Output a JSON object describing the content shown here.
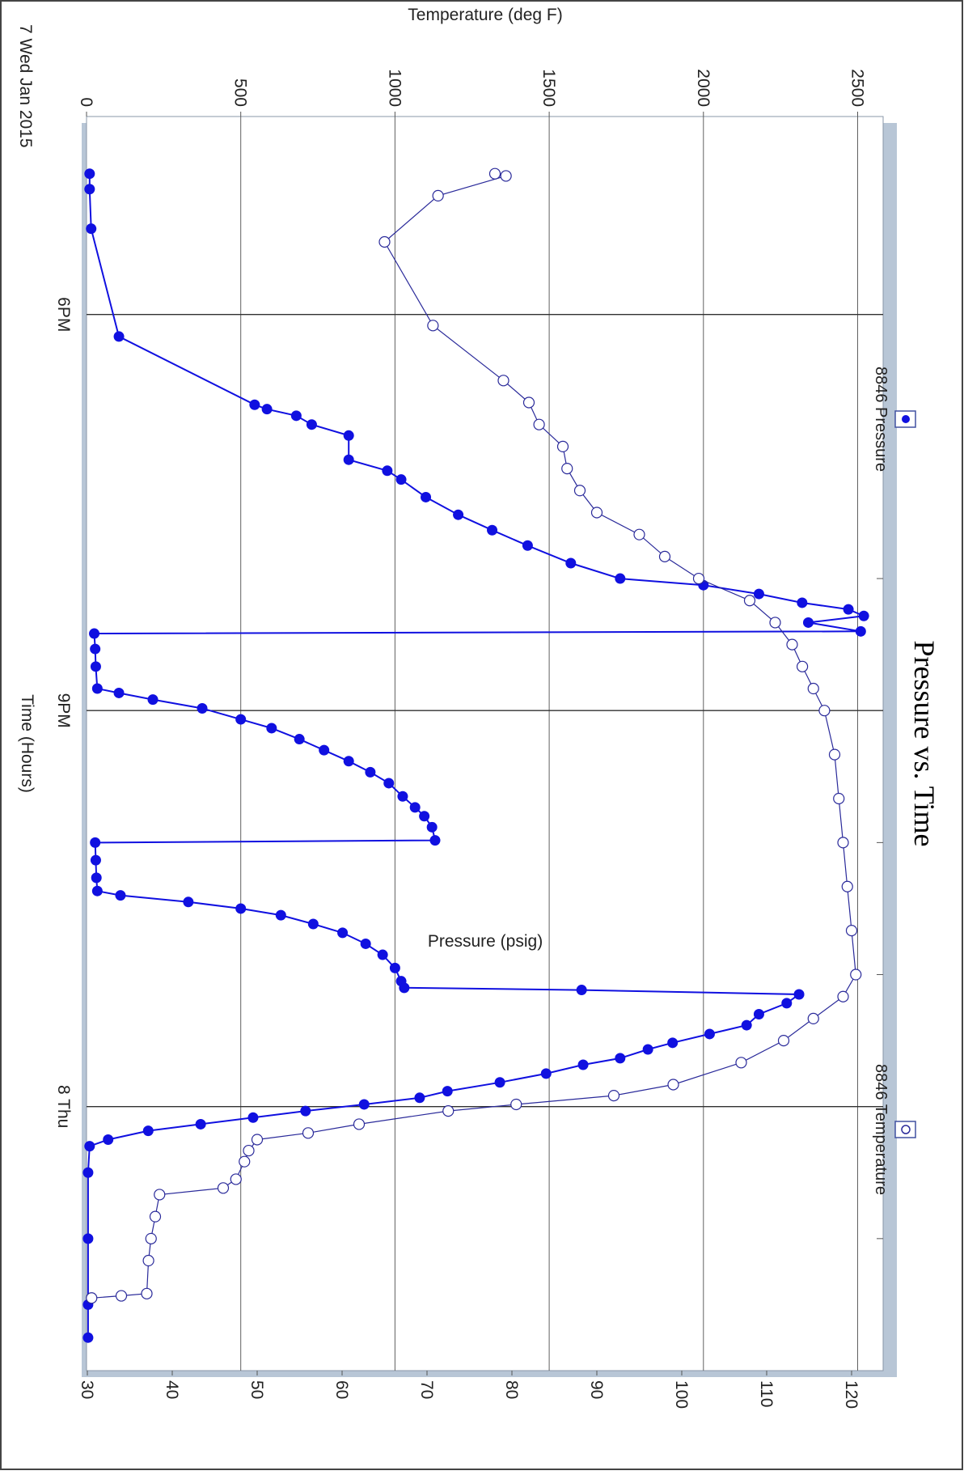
{
  "chart_data": {
    "type": "line",
    "title": "Pressure vs. Time",
    "xlabel": "Time (Hours)",
    "y1label": "Pressure (psig)",
    "y2label": "Temperature (deg F)",
    "date_label": "7 Wed Jan 2015",
    "xlim": [
      "2015-01-07T16:30",
      "2015-01-08T02:00"
    ],
    "x_major_ticks": [
      {
        "t": "2015-01-07T18:00",
        "label": "6PM"
      },
      {
        "t": "2015-01-07T21:00",
        "label": "9PM"
      },
      {
        "t": "2015-01-08T00:00",
        "label": "8 Thu"
      }
    ],
    "x_minor_ticks": [
      "2015-01-07T19:00",
      "2015-01-07T20:00",
      "2015-01-07T22:00",
      "2015-01-07T23:00",
      "2015-01-08T01:00"
    ],
    "y1lim": [
      0,
      2650
    ],
    "y1_ticks": [
      0,
      500,
      1000,
      1500,
      2000,
      2500
    ],
    "y2lim": [
      26,
      124
    ],
    "y2_ticks": [
      30,
      40,
      50,
      60,
      70,
      80,
      90,
      100,
      110,
      120
    ],
    "grid": true,
    "legend_position": "right",
    "series": [
      {
        "name": "8846 Pressure",
        "axis": "pressure",
        "marker": "filled-circle",
        "color": "#1010e0",
        "points": [
          [
            "2015-01-07T16:56",
            10
          ],
          [
            "2015-01-07T17:03",
            10
          ],
          [
            "2015-01-07T17:21",
            15
          ],
          [
            "2015-01-07T18:10",
            105
          ],
          [
            "2015-01-07T18:41",
            545
          ],
          [
            "2015-01-07T18:43",
            585
          ],
          [
            "2015-01-07T18:46",
            680
          ],
          [
            "2015-01-07T18:50",
            730
          ],
          [
            "2015-01-07T18:55",
            850
          ],
          [
            "2015-01-07T19:06",
            850
          ],
          [
            "2015-01-07T19:11",
            975
          ],
          [
            "2015-01-07T19:15",
            1020
          ],
          [
            "2015-01-07T19:23",
            1100
          ],
          [
            "2015-01-07T19:31",
            1205
          ],
          [
            "2015-01-07T19:38",
            1315
          ],
          [
            "2015-01-07T19:45",
            1430
          ],
          [
            "2015-01-07T19:53",
            1570
          ],
          [
            "2015-01-07T20:00",
            1730
          ],
          [
            "2015-01-07T20:03",
            2000
          ],
          [
            "2015-01-07T20:07",
            2180
          ],
          [
            "2015-01-07T20:11",
            2320
          ],
          [
            "2015-01-07T20:14",
            2470
          ],
          [
            "2015-01-07T20:17",
            2520
          ],
          [
            "2015-01-07T20:20",
            2340
          ],
          [
            "2015-01-07T20:24",
            2510
          ],
          [
            "2015-01-07T20:25",
            25
          ],
          [
            "2015-01-07T20:32",
            28
          ],
          [
            "2015-01-07T20:40",
            30
          ],
          [
            "2015-01-07T20:50",
            35
          ],
          [
            "2015-01-07T20:52",
            105
          ],
          [
            "2015-01-07T20:55",
            215
          ],
          [
            "2015-01-07T20:59",
            375
          ],
          [
            "2015-01-07T21:04",
            500
          ],
          [
            "2015-01-07T21:08",
            600
          ],
          [
            "2015-01-07T21:13",
            690
          ],
          [
            "2015-01-07T21:18",
            770
          ],
          [
            "2015-01-07T21:23",
            850
          ],
          [
            "2015-01-07T21:28",
            920
          ],
          [
            "2015-01-07T21:33",
            980
          ],
          [
            "2015-01-07T21:39",
            1025
          ],
          [
            "2015-01-07T21:44",
            1065
          ],
          [
            "2015-01-07T21:48",
            1095
          ],
          [
            "2015-01-07T21:53",
            1120
          ],
          [
            "2015-01-07T21:59",
            1130
          ],
          [
            "2015-01-07T22:00",
            28
          ],
          [
            "2015-01-07T22:08",
            30
          ],
          [
            "2015-01-07T22:16",
            32
          ],
          [
            "2015-01-07T22:22",
            35
          ],
          [
            "2015-01-07T22:24",
            110
          ],
          [
            "2015-01-07T22:27",
            330
          ],
          [
            "2015-01-07T22:30",
            500
          ],
          [
            "2015-01-07T22:33",
            630
          ],
          [
            "2015-01-07T22:37",
            735
          ],
          [
            "2015-01-07T22:41",
            830
          ],
          [
            "2015-01-07T22:46",
            905
          ],
          [
            "2015-01-07T22:51",
            960
          ],
          [
            "2015-01-07T22:57",
            1000
          ],
          [
            "2015-01-07T23:03",
            1020
          ],
          [
            "2015-01-07T23:06",
            1030
          ],
          [
            "2015-01-07T23:07",
            1605
          ],
          [
            "2015-01-07T23:09",
            2310
          ],
          [
            "2015-01-07T23:13",
            2270
          ],
          [
            "2015-01-07T23:18",
            2180
          ],
          [
            "2015-01-07T23:23",
            2140
          ],
          [
            "2015-01-07T23:27",
            2020
          ],
          [
            "2015-01-07T23:31",
            1900
          ],
          [
            "2015-01-07T23:34",
            1820
          ],
          [
            "2015-01-07T23:38",
            1730
          ],
          [
            "2015-01-07T23:41",
            1610
          ],
          [
            "2015-01-07T23:45",
            1490
          ],
          [
            "2015-01-07T23:49",
            1340
          ],
          [
            "2015-01-07T23:53",
            1170
          ],
          [
            "2015-01-07T23:56",
            1080
          ],
          [
            "2015-01-07T23:59",
            900
          ],
          [
            "2015-01-08T00:02",
            710
          ],
          [
            "2015-01-08T00:05",
            540
          ],
          [
            "2015-01-08T00:08",
            370
          ],
          [
            "2015-01-08T00:11",
            200
          ],
          [
            "2015-01-08T00:15",
            70
          ],
          [
            "2015-01-08T00:18",
            10
          ],
          [
            "2015-01-08T00:30",
            5
          ],
          [
            "2015-01-08T01:00",
            5
          ],
          [
            "2015-01-08T01:30",
            5
          ],
          [
            "2015-01-08T01:45",
            5
          ]
        ]
      },
      {
        "name": "8846 Temperature",
        "axis": "temperature",
        "marker": "open-circle",
        "color": "#2a2a9a",
        "points": [
          [
            "2015-01-07T16:56",
            78
          ],
          [
            "2015-01-07T16:57",
            79.3
          ],
          [
            "2015-01-07T17:06",
            71.3
          ],
          [
            "2015-01-07T17:27",
            65
          ],
          [
            "2015-01-07T18:05",
            70.7
          ],
          [
            "2015-01-07T18:30",
            79
          ],
          [
            "2015-01-07T18:40",
            82
          ],
          [
            "2015-01-07T18:50",
            83.2
          ],
          [
            "2015-01-07T19:00",
            86
          ],
          [
            "2015-01-07T19:10",
            86.5
          ],
          [
            "2015-01-07T19:20",
            88
          ],
          [
            "2015-01-07T19:30",
            90
          ],
          [
            "2015-01-07T19:40",
            95
          ],
          [
            "2015-01-07T19:50",
            98
          ],
          [
            "2015-01-07T20:00",
            102
          ],
          [
            "2015-01-07T20:10",
            108
          ],
          [
            "2015-01-07T20:20",
            111
          ],
          [
            "2015-01-07T20:30",
            113
          ],
          [
            "2015-01-07T20:40",
            114.2
          ],
          [
            "2015-01-07T20:50",
            115.5
          ],
          [
            "2015-01-07T21:00",
            116.8
          ],
          [
            "2015-01-07T21:20",
            118
          ],
          [
            "2015-01-07T21:40",
            118.5
          ],
          [
            "2015-01-07T22:00",
            119
          ],
          [
            "2015-01-07T22:20",
            119.5
          ],
          [
            "2015-01-07T22:40",
            120
          ],
          [
            "2015-01-07T23:00",
            120.5
          ],
          [
            "2015-01-07T23:10",
            119
          ],
          [
            "2015-01-07T23:20",
            115.5
          ],
          [
            "2015-01-07T23:30",
            112
          ],
          [
            "2015-01-07T23:40",
            107
          ],
          [
            "2015-01-07T23:50",
            99
          ],
          [
            "2015-01-07T23:55",
            92
          ],
          [
            "2015-01-07T23:59",
            80.5
          ],
          [
            "2015-01-08T00:02",
            72.5
          ],
          [
            "2015-01-08T00:08",
            62
          ],
          [
            "2015-01-08T00:12",
            56
          ],
          [
            "2015-01-08T00:15",
            50
          ],
          [
            "2015-01-08T00:20",
            49
          ],
          [
            "2015-01-08T00:25",
            48.5
          ],
          [
            "2015-01-08T00:33",
            47.5
          ],
          [
            "2015-01-08T00:37",
            46
          ],
          [
            "2015-01-08T00:40",
            38.5
          ],
          [
            "2015-01-08T00:50",
            38
          ],
          [
            "2015-01-08T01:00",
            37.5
          ],
          [
            "2015-01-08T01:10",
            37.2
          ],
          [
            "2015-01-08T01:25",
            37
          ],
          [
            "2015-01-08T01:26",
            34
          ],
          [
            "2015-01-08T01:27",
            30.5
          ]
        ]
      }
    ]
  }
}
